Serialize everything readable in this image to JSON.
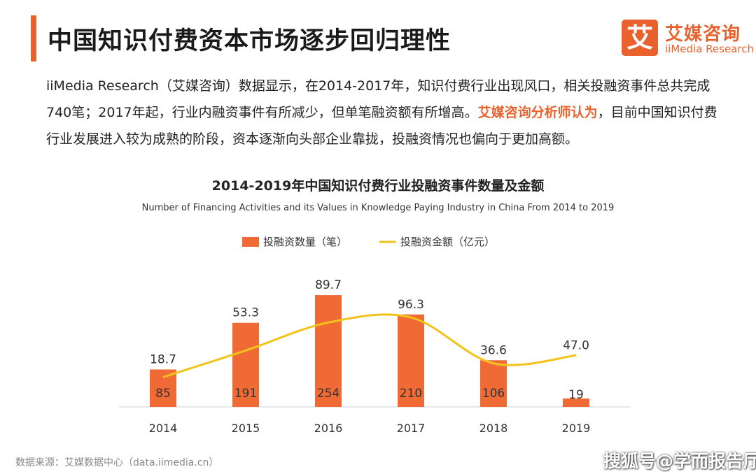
{
  "header": {
    "title": "中国知识付费资本市场逐步回归理性",
    "logo_mark": "艾",
    "logo_cn": "艾媒咨询",
    "logo_en": "iiMedia Research"
  },
  "paragraph": {
    "part1": "iiMedia Research（艾媒咨询）数据显示，在2014-2017年，知识付费行业出现风口，相关投融资事件总共完成740笔；2017年起，行业内融资事件有所减少，但单笔融资额有所增高。",
    "highlight": "艾媒咨询分析师认为",
    "part2": "，目前中国知识付费行业发展进入较为成熟的阶段，资本逐渐向头部企业靠拢，投融资情况也偏向于更加高额。"
  },
  "chart_data": {
    "type": "bar",
    "title": "2014-2019年中国知识付费行业投融资事件数量及金额",
    "subtitle": "Number of Financing Activities and its Values in Knowledge Paying Industry in China From 2014 to 2019",
    "categories": [
      "2014",
      "2015",
      "2016",
      "2017",
      "2018",
      "2019"
    ],
    "series": [
      {
        "name": "投融资数量（笔）",
        "type": "bar",
        "color": "#f06a35",
        "values": [
          85,
          191,
          254,
          210,
          106,
          19
        ]
      },
      {
        "name": "投融资金额（亿元）",
        "type": "line",
        "color": "#f2c318",
        "values": [
          18.7,
          53.3,
          89.7,
          96.3,
          36.6,
          47.0
        ]
      }
    ],
    "legend_position": "top-center",
    "grid": false,
    "bar_ylim": [
      0,
      270
    ],
    "line_ylim": [
      0,
      150
    ]
  },
  "footer": {
    "source": "数据来源：艾媒数据中心（data.iimedia.cn）",
    "watermark": "搜狐号@学而报告厅"
  }
}
